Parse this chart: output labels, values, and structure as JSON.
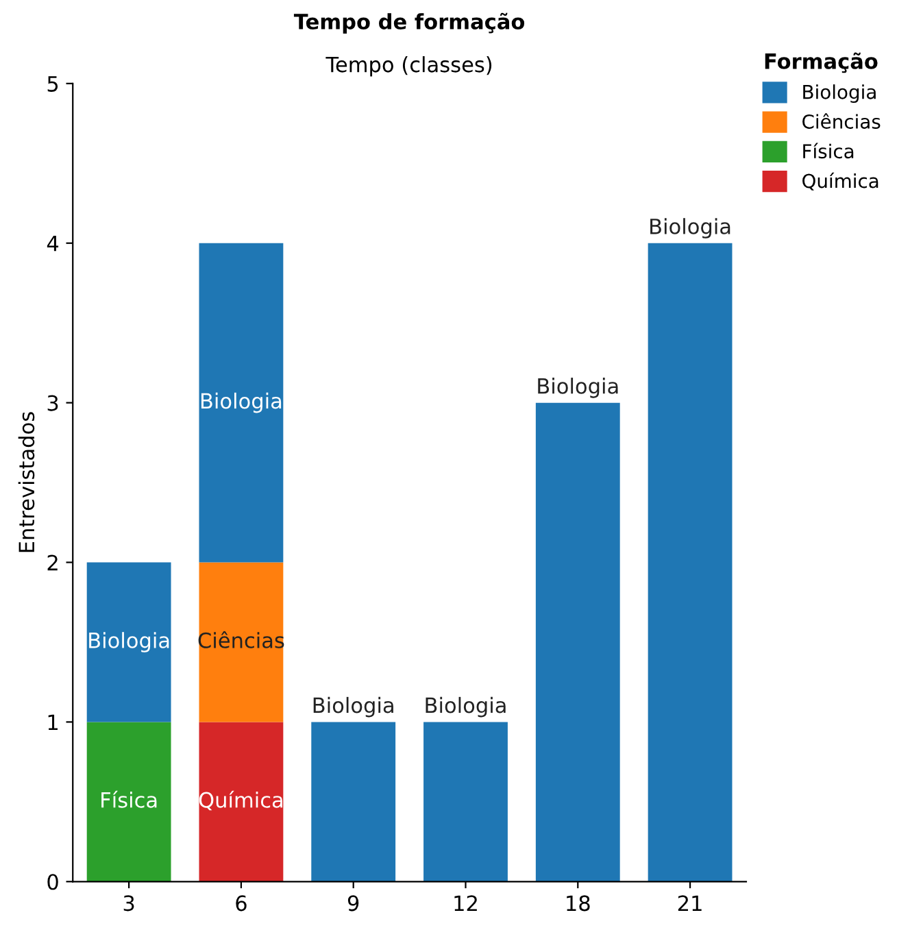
{
  "chart_data": {
    "type": "bar",
    "title": "Tempo de formação",
    "xlabel": "Tempo (classes)",
    "ylabel": "Entrevistados",
    "legend_title": "Formação",
    "categories": [
      "3",
      "6",
      "9",
      "12",
      "18",
      "21"
    ],
    "stacked": true,
    "ylim": [
      0,
      5
    ],
    "yticks": [
      0,
      1,
      2,
      3,
      4,
      5
    ],
    "grid": false,
    "legend": "right",
    "series": [
      {
        "name": "Física",
        "color": "#2ca02c",
        "values": [
          1,
          null,
          null,
          null,
          null,
          null
        ],
        "value_labels": [
          "Física",
          null,
          null,
          null,
          null,
          null
        ]
      },
      {
        "name": "Química",
        "color": "#d62728",
        "values": [
          null,
          1,
          null,
          null,
          null,
          null
        ],
        "value_labels": [
          null,
          "Química",
          null,
          null,
          null,
          null
        ]
      },
      {
        "name": "Ciências",
        "color": "#ff7f0e",
        "values": [
          null,
          1,
          null,
          null,
          null,
          null
        ],
        "value_labels": [
          null,
          "Ciências",
          null,
          null,
          null,
          null
        ]
      },
      {
        "name": "Biologia",
        "color": "#1f77b4",
        "values": [
          1,
          2,
          1,
          1,
          3,
          4
        ],
        "value_labels": [
          "Biologia",
          "Biologia",
          "Biologia",
          "Biologia",
          "Biologia",
          "Biologia"
        ]
      }
    ]
  }
}
